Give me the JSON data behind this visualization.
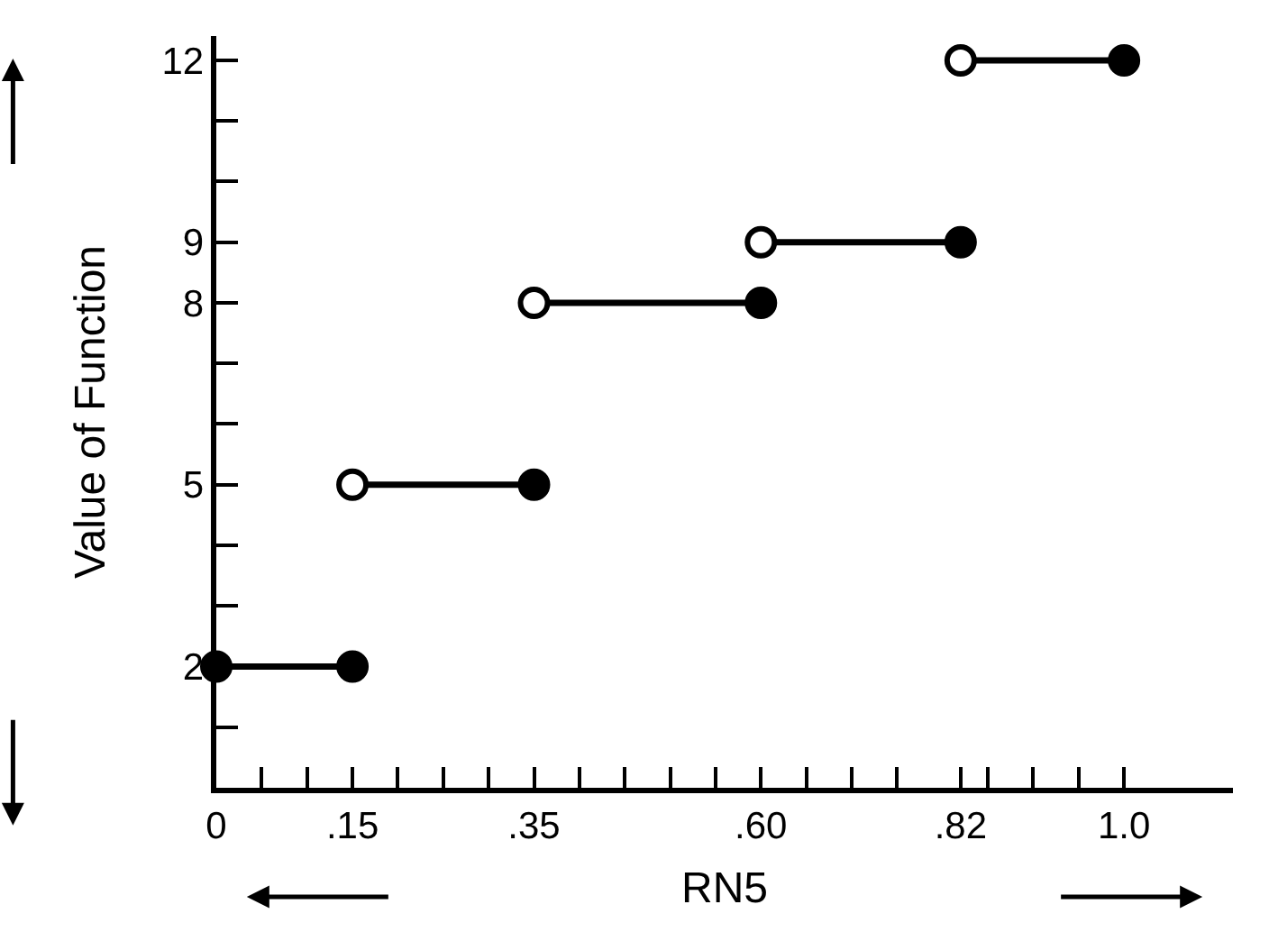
{
  "chart_data": {
    "type": "line",
    "xlabel": "RN5",
    "ylabel": "Value of Function",
    "series": [
      {
        "color": "#000000",
        "x": [
          0,
          0.15
        ],
        "values": [
          2,
          2
        ],
        "marker": "none"
      },
      {
        "color": "#000000",
        "x": [
          0.15,
          0.35
        ],
        "values": [
          5,
          5
        ],
        "marker": "none"
      },
      {
        "color": "#000000",
        "x": [
          0.35,
          0.6
        ],
        "values": [
          8,
          8
        ],
        "marker": "none"
      },
      {
        "color": "#000000",
        "x": [
          0.6,
          0.82
        ],
        "values": [
          9,
          9
        ],
        "marker": "none"
      },
      {
        "color": "#000000",
        "x": [
          0.82,
          1.0
        ],
        "values": [
          12,
          12
        ],
        "marker": "none"
      },
      {
        "type": "scatter",
        "color": "#ffffff",
        "x": [
          0.15,
          0.35,
          0.6,
          0.82
        ],
        "values": [
          5,
          8,
          9,
          12
        ],
        "marker": "circle"
      },
      {
        "type": "scatter",
        "color": "#000000",
        "x": [
          0,
          0.15,
          0.35,
          0.6,
          0.82,
          1.0
        ],
        "values": [
          2,
          2,
          5,
          8,
          9,
          12
        ],
        "marker": "circle"
      }
    ],
    "xlim": [
      0,
      1.12
    ],
    "ylim": [
      0,
      12.4
    ],
    "xticks": [
      0,
      {
        "value": 0.05,
        "label": null
      },
      {
        "value": 0.1,
        "label": null
      },
      {
        "value": 0.15,
        "label": ".15"
      },
      {
        "value": 0.2,
        "label": null
      },
      {
        "value": 0.25,
        "label": null
      },
      {
        "value": 0.3,
        "label": null
      },
      {
        "value": 0.35,
        "label": ".35"
      },
      {
        "value": 0.4,
        "label": null
      },
      {
        "value": 0.45,
        "label": null
      },
      {
        "value": 0.5,
        "label": null
      },
      {
        "value": 0.55,
        "label": null
      },
      {
        "value": 0.6,
        "label": ".60"
      },
      {
        "value": 0.65,
        "label": null
      },
      {
        "value": 0.7,
        "label": null
      },
      {
        "value": 0.75,
        "label": null
      },
      {
        "value": 0.82,
        "label": ".82"
      },
      {
        "value": 0.85,
        "label": null
      },
      {
        "value": 0.9,
        "label": null
      },
      {
        "value": 0.95,
        "label": null
      },
      {
        "value": 1.0,
        "label": "1.0"
      }
    ],
    "yticks": [
      {
        "value": 1,
        "label": null
      },
      2,
      {
        "value": 3,
        "label": null
      },
      {
        "value": 4,
        "label": null
      },
      5,
      {
        "value": 6,
        "label": null
      },
      {
        "value": 7,
        "label": null
      },
      8,
      9,
      {
        "value": 10,
        "label": null
      },
      {
        "value": 11,
        "label": null
      },
      12
    ]
  }
}
